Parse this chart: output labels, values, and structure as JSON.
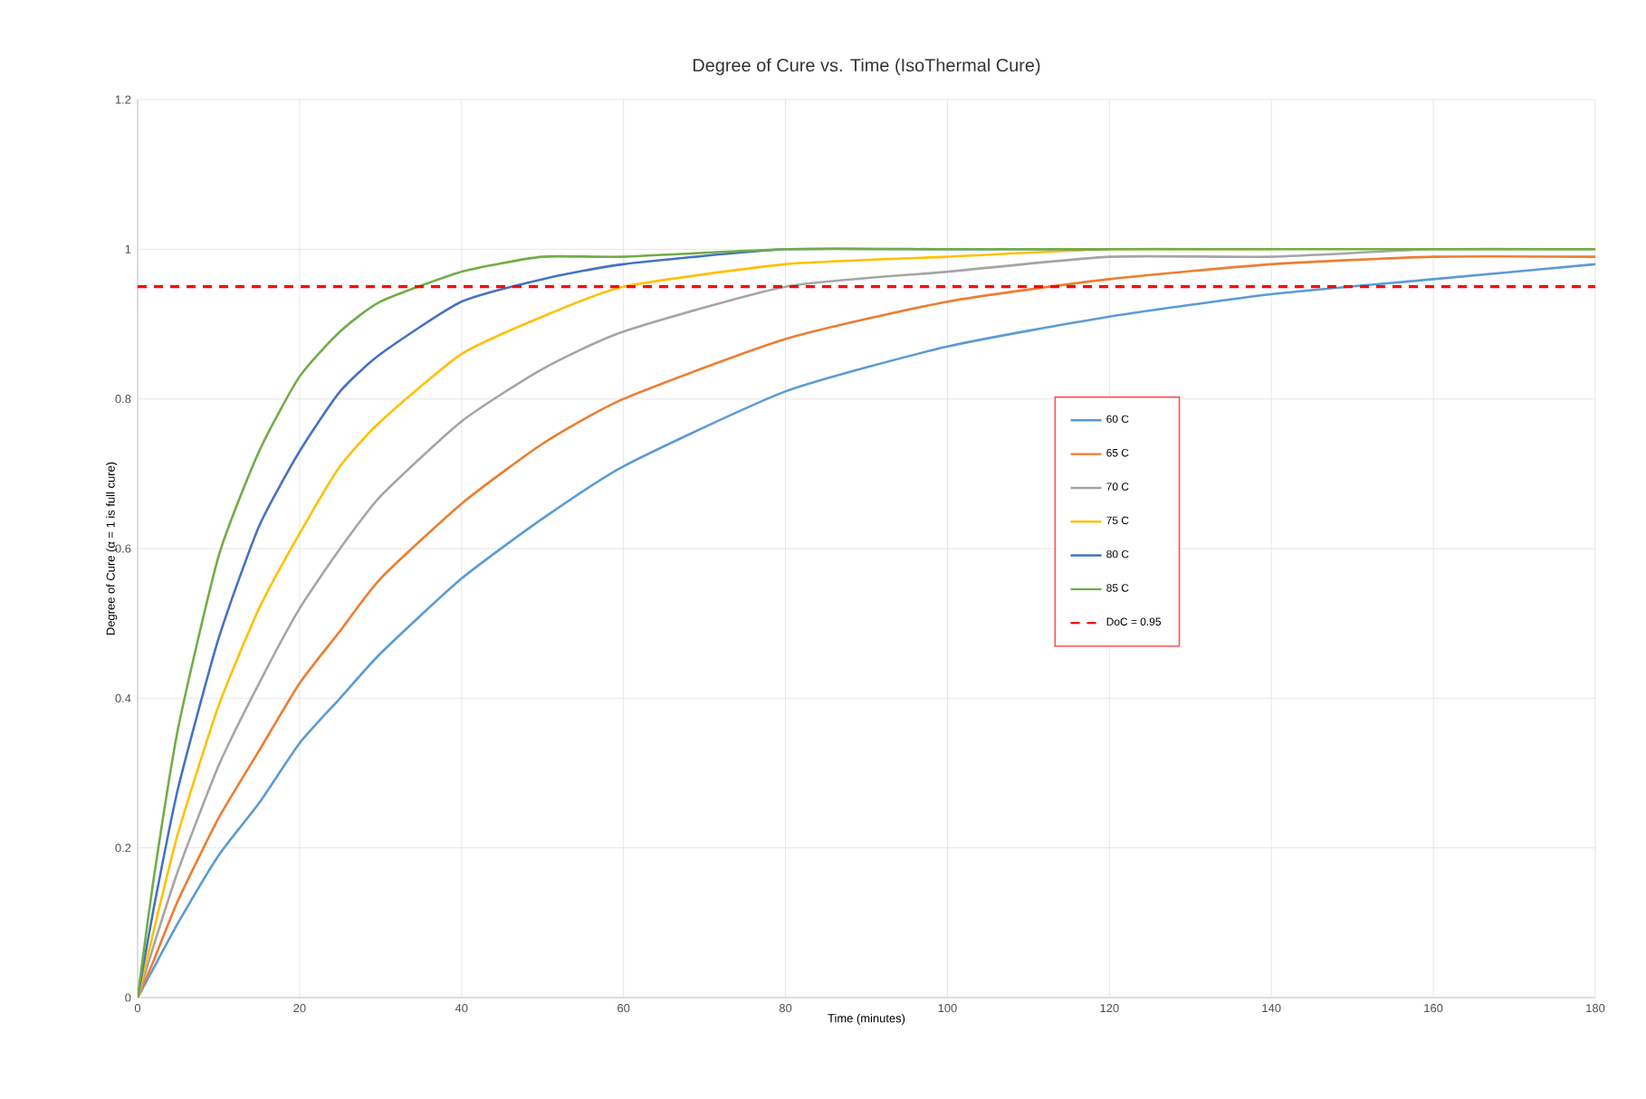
{
  "chart_data": {
    "type": "line",
    "title": "Degree of Cure vs. Time (IsoThermal Cure)",
    "xlabel": "Time (minutes)",
    "ylabel": "Degree of Cure (α = 1 is full cure)",
    "x": [
      0,
      2,
      5,
      10,
      15,
      20,
      25,
      30,
      40,
      50,
      60,
      80,
      100,
      120,
      140,
      160,
      180
    ],
    "series": [
      {
        "name": "60 C",
        "color": "#5b9bd5",
        "values": [
          0,
          0.04,
          0.1,
          0.19,
          0.26,
          0.34,
          0.4,
          0.46,
          0.56,
          0.64,
          0.71,
          0.81,
          0.87,
          0.91,
          0.94,
          0.96,
          0.98
        ]
      },
      {
        "name": "65 C",
        "color": "#ed7d31",
        "values": [
          0,
          0.05,
          0.13,
          0.24,
          0.33,
          0.42,
          0.49,
          0.56,
          0.66,
          0.74,
          0.8,
          0.88,
          0.93,
          0.96,
          0.98,
          0.99,
          0.99
        ]
      },
      {
        "name": "70 C",
        "color": "#a5a5a5",
        "values": [
          0,
          0.07,
          0.17,
          0.31,
          0.42,
          0.52,
          0.6,
          0.67,
          0.77,
          0.84,
          0.89,
          0.95,
          0.97,
          0.99,
          0.99,
          1.0,
          1.0
        ]
      },
      {
        "name": "75 C",
        "color": "#ffc000",
        "values": [
          0,
          0.09,
          0.22,
          0.39,
          0.52,
          0.62,
          0.71,
          0.77,
          0.86,
          0.91,
          0.95,
          0.98,
          0.99,
          1.0,
          1.0,
          null,
          null
        ]
      },
      {
        "name": "80 C",
        "color": "#4472c4",
        "values": [
          0,
          0.12,
          0.28,
          0.48,
          0.63,
          0.73,
          0.81,
          0.86,
          0.93,
          0.96,
          0.98,
          1.0,
          1.0,
          1.0,
          null,
          null,
          null
        ]
      },
      {
        "name": "85 C",
        "color": "#70ad47",
        "values": [
          0,
          0.16,
          0.36,
          0.59,
          0.73,
          0.83,
          0.89,
          0.93,
          0.97,
          0.99,
          0.99,
          1.0,
          1.0,
          1.0,
          1.0,
          1.0,
          1.0
        ]
      }
    ],
    "ref_lines": [
      {
        "axis": "y",
        "value": 0.95,
        "label": "DoC = 0.95",
        "color": "#ff0000",
        "line_style": "dashed"
      }
    ],
    "xlim": [
      0,
      180
    ],
    "xticks": [
      0,
      20,
      40,
      60,
      80,
      100,
      120,
      140,
      160,
      180
    ],
    "ylim": [
      0,
      1.2
    ],
    "yticks": [
      0,
      0.2,
      0.4,
      0.6,
      0.8,
      1,
      1.2
    ],
    "grid": true,
    "legend": "right",
    "line_style": "solid"
  }
}
